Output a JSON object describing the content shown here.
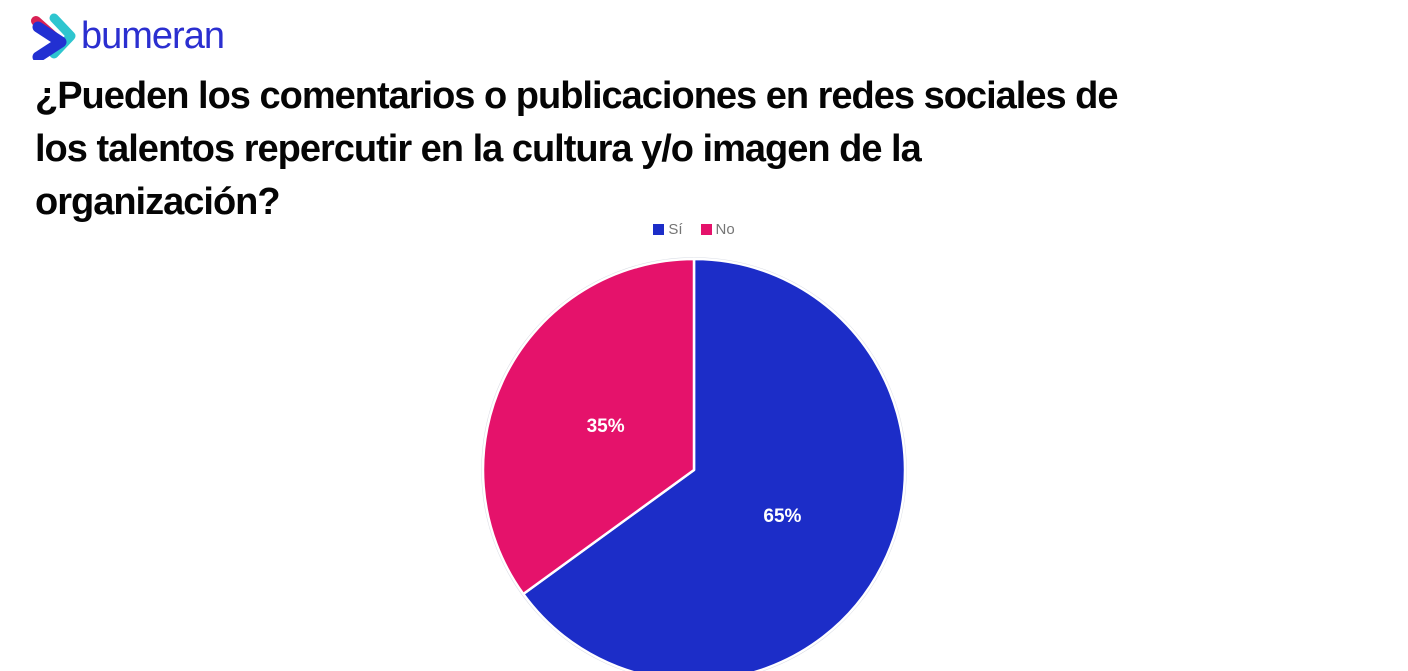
{
  "page": {
    "background_color": "#ffffff"
  },
  "logo": {
    "text": "bumeran",
    "text_color": "#2b2fd0",
    "icon_colors": {
      "crimson": "#d92154",
      "teal": "#2ec5cf",
      "blue": "#2230d2"
    }
  },
  "title": {
    "full": "¿Pueden los comentarios o publicaciones en redes sociales de los talentos repercutir en la cultura y/o imagen de la organización?",
    "lines": [
      "¿Pueden los comentarios o publicaciones en redes sociales de",
      "los talentos repercutir en la cultura y/o imagen de la",
      "organización?"
    ],
    "color": "#050505"
  },
  "chart_data": {
    "type": "pie",
    "categories": [
      "Sí",
      "No"
    ],
    "values": [
      65,
      35
    ],
    "slice_labels": [
      "65%",
      "35%"
    ],
    "colors": [
      "#1c2dc8",
      "#e5126b"
    ],
    "slice_label_color": "#ffffff",
    "separator_color": "#ffffff",
    "outline_color": "#d9dce4",
    "legend_position": "top",
    "legend_text_color": "#757575",
    "start_angle_deg": 0,
    "direction": "clockwise"
  }
}
